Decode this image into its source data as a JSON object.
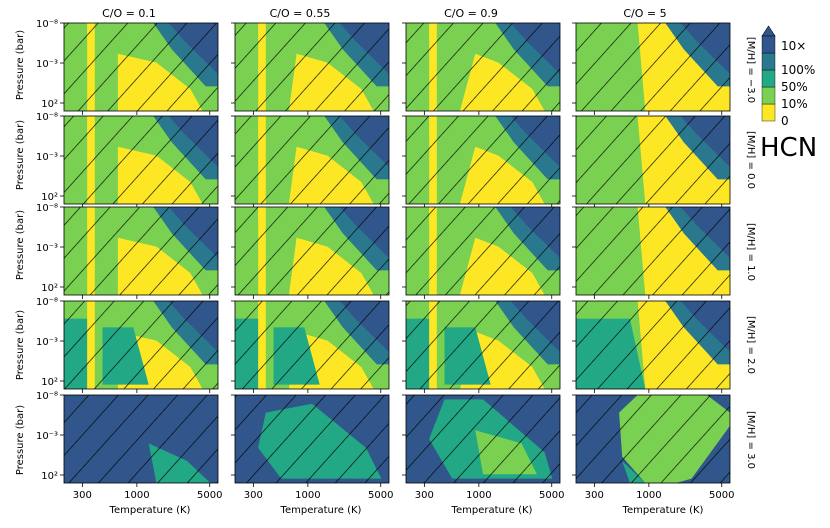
{
  "chart_data": {
    "type": "heatmap",
    "title": "HCN",
    "xlabel": "Temperature (K)",
    "ylabel": "Pressure (bar)",
    "x_scale": "log",
    "y_scale": "log",
    "xlim": [
      200,
      6000
    ],
    "ylim": [
      1000,
      1e-08
    ],
    "x_tick_labels": [
      "300",
      "1000",
      "5000"
    ],
    "x_tick_values": [
      300,
      1000,
      5000
    ],
    "y_tick_labels": [
      "10⁻⁸",
      "10⁻³",
      "10²"
    ],
    "y_tick_values": [
      1e-08,
      0.001,
      100
    ],
    "columns": [
      "C/O = 0.1",
      "C/O = 0.55",
      "C/O = 0.9",
      "C/O = 5"
    ],
    "rows": [
      "[M/H] = −3.0",
      "[M/H] = 0.0",
      "[M/H] = 1.0",
      "[M/H] = 2.0",
      "[M/H] = 3.0"
    ],
    "colorbar": {
      "levels": [
        "0",
        "10%",
        "50%",
        "100%",
        "10×"
      ],
      "colors": [
        "#fde725",
        "#7ad151",
        "#22a884",
        "#2a788e",
        "#31568b"
      ],
      "extend": "max"
    },
    "hatched_panels": [
      [
        true,
        true,
        true,
        true
      ],
      [
        true,
        true,
        true,
        true
      ],
      [
        true,
        true,
        true,
        true
      ],
      [
        true,
        true,
        true,
        true
      ],
      [
        true,
        true,
        true,
        true
      ]
    ]
  }
}
